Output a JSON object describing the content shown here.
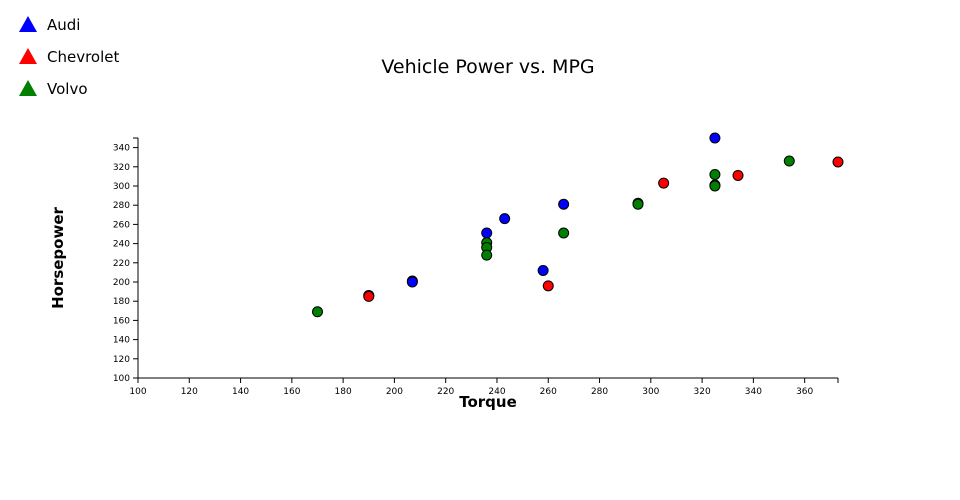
{
  "chart_data": {
    "type": "scatter",
    "title": "Vehicle Power vs. MPG",
    "xlabel": "Torque",
    "ylabel": "Horsepower",
    "xlim": [
      100,
      373
    ],
    "ylim": [
      100,
      350
    ],
    "x_ticks": [
      100,
      120,
      140,
      160,
      180,
      200,
      220,
      240,
      260,
      280,
      300,
      320,
      340,
      360
    ],
    "y_ticks": [
      100,
      120,
      140,
      160,
      180,
      200,
      220,
      240,
      260,
      280,
      300,
      320,
      340
    ],
    "grid": false,
    "legend_position": "top-left",
    "series": [
      {
        "name": "Audi",
        "color": "#0000ff",
        "points": [
          {
            "x": 325,
            "y": 350
          },
          {
            "x": 266,
            "y": 281
          },
          {
            "x": 243,
            "y": 266
          },
          {
            "x": 236,
            "y": 251
          },
          {
            "x": 258,
            "y": 212
          },
          {
            "x": 207,
            "y": 201
          },
          {
            "x": 207,
            "y": 200
          }
        ]
      },
      {
        "name": "Chevrolet",
        "color": "#ff0000",
        "points": [
          {
            "x": 373,
            "y": 325
          },
          {
            "x": 334,
            "y": 311
          },
          {
            "x": 305,
            "y": 303
          },
          {
            "x": 260,
            "y": 196
          },
          {
            "x": 190,
            "y": 186
          },
          {
            "x": 190,
            "y": 185
          }
        ]
      },
      {
        "name": "Volvo",
        "color": "#008000",
        "points": [
          {
            "x": 354,
            "y": 326
          },
          {
            "x": 325,
            "y": 312
          },
          {
            "x": 325,
            "y": 301
          },
          {
            "x": 325,
            "y": 300
          },
          {
            "x": 295,
            "y": 282
          },
          {
            "x": 295,
            "y": 281
          },
          {
            "x": 266,
            "y": 251
          },
          {
            "x": 236,
            "y": 241
          },
          {
            "x": 236,
            "y": 236
          },
          {
            "x": 236,
            "y": 228
          },
          {
            "x": 170,
            "y": 169
          }
        ]
      }
    ]
  }
}
